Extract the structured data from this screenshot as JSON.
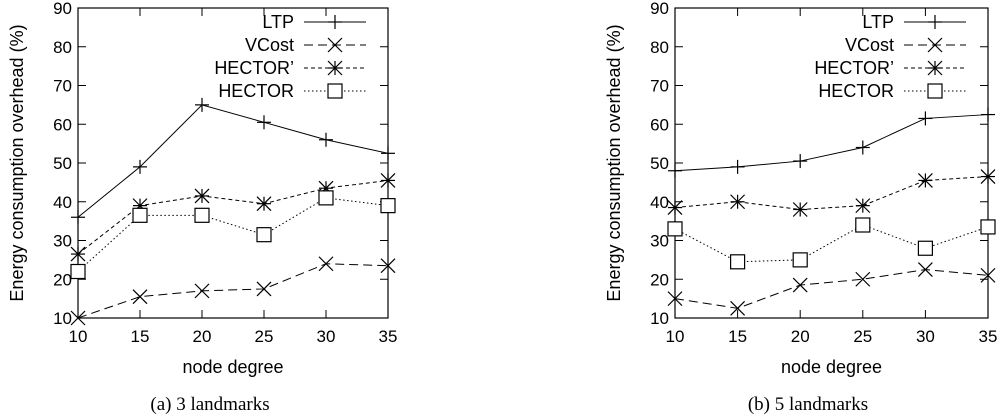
{
  "chart_data": [
    {
      "type": "line",
      "caption": "(a)  3 landmarks",
      "xlabel": "node degree",
      "ylabel": "Energy consumption overhead (%)",
      "x": [
        10,
        15,
        20,
        25,
        30,
        35
      ],
      "xlim": [
        10,
        35
      ],
      "ylim": [
        10,
        90
      ],
      "xticks": [
        10,
        15,
        20,
        25,
        30,
        35
      ],
      "yticks": [
        10,
        20,
        30,
        40,
        50,
        60,
        70,
        80,
        90
      ],
      "legend_position": "top-right",
      "grid": false,
      "series": [
        {
          "name": "LTP",
          "marker": "plus",
          "dash": "solid",
          "values": [
            36,
            49,
            65,
            60.5,
            56,
            52.5
          ]
        },
        {
          "name": "VCost",
          "marker": "cross",
          "dash": "dashed",
          "values": [
            10,
            15.5,
            17,
            17.5,
            24,
            23.5
          ]
        },
        {
          "name": "HECTOR’",
          "marker": "star",
          "dash": "dashdot",
          "values": [
            26.5,
            39,
            41.5,
            39.5,
            43.5,
            45.5
          ]
        },
        {
          "name": "HECTOR",
          "marker": "square",
          "dash": "dotted",
          "values": [
            22,
            36.5,
            36.5,
            31.5,
            41,
            39
          ]
        }
      ]
    },
    {
      "type": "line",
      "caption": "(b)  5 landmarks",
      "xlabel": "node degree",
      "ylabel": "Energy consumption overhead (%)",
      "x": [
        10,
        15,
        20,
        25,
        30,
        35
      ],
      "xlim": [
        10,
        35
      ],
      "ylim": [
        10,
        90
      ],
      "xticks": [
        10,
        15,
        20,
        25,
        30,
        35
      ],
      "yticks": [
        10,
        20,
        30,
        40,
        50,
        60,
        70,
        80,
        90
      ],
      "legend_position": "top-right",
      "grid": false,
      "series": [
        {
          "name": "LTP",
          "marker": "plus",
          "dash": "solid",
          "values": [
            48,
            49,
            50.5,
            54,
            61.5,
            62.5
          ]
        },
        {
          "name": "VCost",
          "marker": "cross",
          "dash": "dashed",
          "values": [
            15,
            12.5,
            18.5,
            20,
            22.5,
            21
          ]
        },
        {
          "name": "HECTOR’",
          "marker": "star",
          "dash": "dashdot",
          "values": [
            38.5,
            40,
            38,
            39,
            45.5,
            46.5
          ]
        },
        {
          "name": "HECTOR",
          "marker": "square",
          "dash": "dotted",
          "values": [
            33,
            24.5,
            25,
            34,
            28,
            33.5
          ]
        }
      ]
    }
  ]
}
